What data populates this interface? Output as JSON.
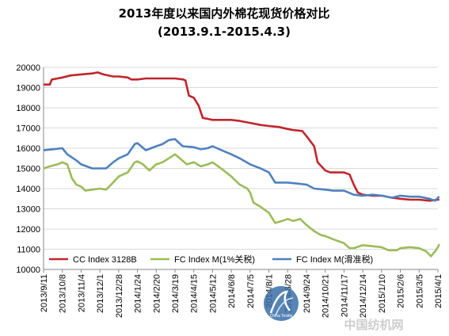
{
  "chart_data": {
    "type": "line",
    "title": "2013年度以来国内外棉花现货价格对比",
    "subtitle": "(2013.9.1-2015.4.3)",
    "xlabel": "",
    "ylabel": "",
    "ylim": [
      10000,
      20000
    ],
    "yticks": [
      10000,
      11000,
      12000,
      13000,
      14000,
      15000,
      16000,
      17000,
      18000,
      19000,
      20000
    ],
    "grid": true,
    "legend_position": "bottom",
    "xticks": [
      "2013/9/11",
      "2013/10/8",
      "2013/11/4",
      "2013/12/1",
      "2013/12/28",
      "2014/1/24",
      "2014/2/20",
      "2014/3/19",
      "2014/4/15",
      "2014/5/12",
      "2014/6/8",
      "2014/7/5",
      "2014/8/1",
      "2014/8/28",
      "2014/9/24",
      "2014/10/21",
      "2014/11/17",
      "2014/12/14",
      "2015/1/10",
      "2015/2/6",
      "2015/3/5",
      "2015/4/1"
    ],
    "series": [
      {
        "name": "CC Index 3128B",
        "color": "#c0262c",
        "points": [
          [
            "2013/9/11",
            19150
          ],
          [
            "2013/9/20",
            19150
          ],
          [
            "2013/9/23",
            19400
          ],
          [
            "2013/10/1",
            19450
          ],
          [
            "2013/10/8",
            19500
          ],
          [
            "2013/10/20",
            19600
          ],
          [
            "2013/11/4",
            19650
          ],
          [
            "2013/11/20",
            19700
          ],
          [
            "2013/11/28",
            19750
          ],
          [
            "2013/12/6",
            19650
          ],
          [
            "2013/12/20",
            19550
          ],
          [
            "2013/12/28",
            19550
          ],
          [
            "2014/1/10",
            19500
          ],
          [
            "2014/1/15",
            19400
          ],
          [
            "2014/1/24",
            19400
          ],
          [
            "2014/2/5",
            19450
          ],
          [
            "2014/2/20",
            19450
          ],
          [
            "2014/3/10",
            19450
          ],
          [
            "2014/3/19",
            19450
          ],
          [
            "2014/3/31",
            19400
          ],
          [
            "2014/4/3",
            19350
          ],
          [
            "2014/4/8",
            18600
          ],
          [
            "2014/4/15",
            18500
          ],
          [
            "2014/4/22",
            18100
          ],
          [
            "2014/4/28",
            17500
          ],
          [
            "2014/5/5",
            17450
          ],
          [
            "2014/5/12",
            17400
          ],
          [
            "2014/6/1",
            17400
          ],
          [
            "2014/6/8",
            17400
          ],
          [
            "2014/6/20",
            17350
          ],
          [
            "2014/7/5",
            17250
          ],
          [
            "2014/7/20",
            17150
          ],
          [
            "2014/8/1",
            17100
          ],
          [
            "2014/8/15",
            17050
          ],
          [
            "2014/8/28",
            16950
          ],
          [
            "2014/9/5",
            16900
          ],
          [
            "2014/9/18",
            16850
          ],
          [
            "2014/9/24",
            16600
          ],
          [
            "2014/10/5",
            16100
          ],
          [
            "2014/10/10",
            15300
          ],
          [
            "2014/10/21",
            14900
          ],
          [
            "2014/10/28",
            14800
          ],
          [
            "2014/11/17",
            14800
          ],
          [
            "2014/11/25",
            14700
          ],
          [
            "2014/12/1",
            14200
          ],
          [
            "2014/12/7",
            13800
          ],
          [
            "2014/12/14",
            13700
          ],
          [
            "2014/12/28",
            13650
          ],
          [
            "2015/1/10",
            13650
          ],
          [
            "2015/1/25",
            13550
          ],
          [
            "2015/2/6",
            13500
          ],
          [
            "2015/2/20",
            13450
          ],
          [
            "2015/3/5",
            13450
          ],
          [
            "2015/3/20",
            13400
          ],
          [
            "2015/4/1",
            13450
          ],
          [
            "2015/4/3",
            13450
          ]
        ]
      },
      {
        "name": "FC Index M(1%关税)",
        "color": "#9bbb59",
        "points": [
          [
            "2013/9/11",
            15000
          ],
          [
            "2013/9/20",
            15100
          ],
          [
            "2013/10/1",
            15200
          ],
          [
            "2013/10/8",
            15300
          ],
          [
            "2013/10/15",
            15200
          ],
          [
            "2013/10/22",
            14500
          ],
          [
            "2013/10/28",
            14200
          ],
          [
            "2013/11/4",
            14100
          ],
          [
            "2013/11/10",
            13900
          ],
          [
            "2013/11/20",
            13950
          ],
          [
            "2013/12/1",
            14000
          ],
          [
            "2013/12/10",
            13950
          ],
          [
            "2013/12/20",
            14300
          ],
          [
            "2013/12/28",
            14600
          ],
          [
            "2014/1/10",
            14800
          ],
          [
            "2014/1/20",
            15300
          ],
          [
            "2014/1/24",
            15350
          ],
          [
            "2014/2/1",
            15200
          ],
          [
            "2014/2/10",
            14900
          ],
          [
            "2014/2/20",
            15200
          ],
          [
            "2014/3/1",
            15300
          ],
          [
            "2014/3/10",
            15500
          ],
          [
            "2014/3/19",
            15700
          ],
          [
            "2014/3/26",
            15500
          ],
          [
            "2014/4/5",
            15200
          ],
          [
            "2014/4/15",
            15300
          ],
          [
            "2014/4/25",
            15100
          ],
          [
            "2014/5/5",
            15200
          ],
          [
            "2014/5/12",
            15300
          ],
          [
            "2014/5/20",
            15100
          ],
          [
            "2014/5/28",
            14900
          ],
          [
            "2014/6/8",
            14600
          ],
          [
            "2014/6/20",
            14200
          ],
          [
            "2014/7/1",
            14000
          ],
          [
            "2014/7/5",
            13800
          ],
          [
            "2014/7/10",
            13300
          ],
          [
            "2014/7/20",
            13100
          ],
          [
            "2014/8/1",
            12800
          ],
          [
            "2014/8/10",
            12300
          ],
          [
            "2014/8/20",
            12400
          ],
          [
            "2014/8/28",
            12500
          ],
          [
            "2014/9/5",
            12400
          ],
          [
            "2014/9/15",
            12500
          ],
          [
            "2014/9/24",
            12200
          ],
          [
            "2014/10/5",
            11900
          ],
          [
            "2014/10/15",
            11700
          ],
          [
            "2014/10/21",
            11650
          ],
          [
            "2014/11/1",
            11500
          ],
          [
            "2014/11/17",
            11300
          ],
          [
            "2014/11/25",
            11050
          ],
          [
            "2014/12/1",
            11050
          ],
          [
            "2014/12/14",
            11200
          ],
          [
            "2014/12/28",
            11150
          ],
          [
            "2015/1/10",
            11100
          ],
          [
            "2015/1/20",
            10950
          ],
          [
            "2015/2/1",
            10950
          ],
          [
            "2015/2/6",
            11050
          ],
          [
            "2015/2/20",
            11100
          ],
          [
            "2015/3/5",
            11050
          ],
          [
            "2015/3/15",
            10900
          ],
          [
            "2015/3/22",
            10650
          ],
          [
            "2015/3/28",
            10900
          ],
          [
            "2015/4/1",
            11100
          ],
          [
            "2015/4/3",
            11250
          ]
        ]
      },
      {
        "name": "FC Index M(滑准税)",
        "color": "#4f81bd",
        "points": [
          [
            "2013/9/11",
            15900
          ],
          [
            "2013/9/25",
            15950
          ],
          [
            "2013/10/8",
            16000
          ],
          [
            "2013/10/15",
            15700
          ],
          [
            "2013/10/28",
            15400
          ],
          [
            "2013/11/4",
            15200
          ],
          [
            "2013/11/20",
            15000
          ],
          [
            "2013/12/1",
            15000
          ],
          [
            "2013/12/10",
            15000
          ],
          [
            "2013/12/20",
            15300
          ],
          [
            "2013/12/28",
            15500
          ],
          [
            "2014/1/10",
            15700
          ],
          [
            "2014/1/20",
            16200
          ],
          [
            "2014/1/24",
            16250
          ],
          [
            "2014/2/5",
            15900
          ],
          [
            "2014/2/20",
            16100
          ],
          [
            "2014/3/1",
            16200
          ],
          [
            "2014/3/10",
            16400
          ],
          [
            "2014/3/19",
            16450
          ],
          [
            "2014/3/30",
            16100
          ],
          [
            "2014/4/15",
            16050
          ],
          [
            "2014/4/25",
            15950
          ],
          [
            "2014/5/5",
            16000
          ],
          [
            "2014/5/12",
            16100
          ],
          [
            "2014/5/25",
            15900
          ],
          [
            "2014/6/8",
            15700
          ],
          [
            "2014/6/20",
            15500
          ],
          [
            "2014/7/5",
            15200
          ],
          [
            "2014/7/20",
            15000
          ],
          [
            "2014/8/1",
            14800
          ],
          [
            "2014/8/10",
            14300
          ],
          [
            "2014/8/28",
            14300
          ],
          [
            "2014/9/10",
            14250
          ],
          [
            "2014/9/24",
            14200
          ],
          [
            "2014/10/5",
            14000
          ],
          [
            "2014/10/21",
            13950
          ],
          [
            "2014/11/1",
            13900
          ],
          [
            "2014/11/17",
            13900
          ],
          [
            "2014/12/1",
            13700
          ],
          [
            "2014/12/14",
            13650
          ],
          [
            "2014/12/28",
            13700
          ],
          [
            "2015/1/10",
            13650
          ],
          [
            "2015/1/25",
            13550
          ],
          [
            "2015/2/6",
            13650
          ],
          [
            "2015/2/20",
            13600
          ],
          [
            "2015/3/5",
            13600
          ],
          [
            "2015/3/20",
            13500
          ],
          [
            "2015/3/28",
            13400
          ],
          [
            "2015/4/1",
            13550
          ],
          [
            "2015/4/3",
            13600
          ]
        ]
      }
    ]
  },
  "watermark": {
    "text": "中国纺机网",
    "logo_text": "China Textile"
  }
}
